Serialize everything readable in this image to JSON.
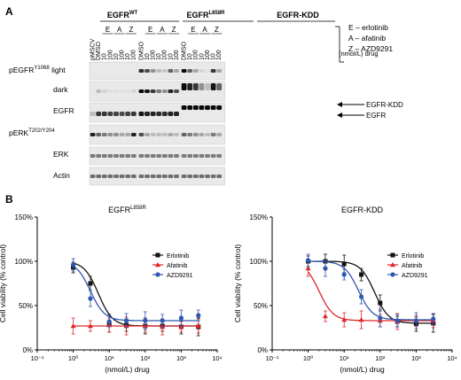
{
  "panel_a": {
    "label": "A",
    "groups": [
      {
        "name": "EGFR",
        "sup": "WT"
      },
      {
        "name": "EGFR",
        "sup": "L858R"
      },
      {
        "name": "EGFR-KDD",
        "sup": ""
      }
    ],
    "pmscv": "pMSCV",
    "dmso": "DMSO",
    "drug_letters": [
      "E",
      "A",
      "Z"
    ],
    "doses": [
      "10",
      "100"
    ],
    "drug_unit": "(nmol/L) drug",
    "legend": [
      "E – erlotinib",
      "A – afatinib",
      "Z – AZD9291"
    ],
    "rows": [
      {
        "name": "pEGFR",
        "sup": "Y1068",
        "suffix": " light"
      },
      {
        "name": "dark",
        "sup": "",
        "suffix": ""
      },
      {
        "name": "EGFR",
        "sup": "",
        "suffix": ""
      },
      {
        "name": "pERK",
        "sup": "T202/Y204",
        "suffix": ""
      },
      {
        "name": "ERK",
        "sup": "",
        "suffix": ""
      },
      {
        "name": "Actin",
        "sup": "",
        "suffix": ""
      }
    ],
    "band_arrows": [
      "EGFR-KDD",
      "EGFR"
    ]
  },
  "panel_b": {
    "label": "B",
    "ylabel": "Cell viability (% control)",
    "xlabel": "(nmol/L) drug",
    "colors": {
      "Erlotinib": "#111111",
      "Afatinib": "#e0262b",
      "AZD9291": "#2f58b0"
    }
  },
  "chart_data": [
    {
      "type": "line",
      "title": "EGFR",
      "title_sup": "L858R",
      "xlabel": "(nmol/L) drug",
      "ylabel": "Cell viability (% control)",
      "xscale": "log",
      "xlim": [
        0.1,
        10000
      ],
      "ylim": [
        0,
        150
      ],
      "xticks": [
        "10⁻¹",
        "10⁰",
        "10¹",
        "10²",
        "10³",
        "10⁴"
      ],
      "yticks": [
        "0%",
        "50%",
        "100%",
        "150%"
      ],
      "legend_position": "right",
      "x": [
        1,
        3,
        10,
        30,
        100,
        300,
        1000,
        3000
      ],
      "series": [
        {
          "name": "Erlotinib",
          "values": [
            93,
            75,
            30,
            28,
            27,
            27,
            26,
            26
          ],
          "curve": [
            100,
            27,
            5
          ]
        },
        {
          "name": "Afatinib",
          "values": [
            27,
            27,
            28,
            27,
            27,
            26,
            26,
            27
          ],
          "curve": [
            27,
            27,
            1
          ]
        },
        {
          "name": "AZD9291",
          "values": [
            96,
            58,
            32,
            33,
            33,
            33,
            36,
            39
          ],
          "curve": [
            100,
            33,
            3
          ]
        }
      ]
    },
    {
      "type": "line",
      "title": "EGFR-KDD",
      "title_sup": "",
      "xlabel": "(nmol/L) drug",
      "ylabel": "Cell viability (% control)",
      "xscale": "log",
      "xlim": [
        0.1,
        10000
      ],
      "ylim": [
        0,
        150
      ],
      "xticks": [
        "10⁻¹",
        "10⁰",
        "10¹",
        "10²",
        "10³",
        "10⁴"
      ],
      "yticks": [
        "0%",
        "50%",
        "100%",
        "150%"
      ],
      "legend_position": "right",
      "x": [
        1,
        3,
        10,
        30,
        100,
        300,
        1000,
        3000
      ],
      "series": [
        {
          "name": "Erlotinib",
          "values": [
            100,
            100,
            97,
            85,
            53,
            32,
            29,
            30
          ],
          "curve": [
            100,
            30,
            70
          ]
        },
        {
          "name": "Afatinib",
          "values": [
            92,
            38,
            34,
            34,
            33,
            32,
            33,
            33
          ],
          "curve": [
            100,
            33,
            2
          ]
        },
        {
          "name": "AZD9291",
          "values": [
            101,
            92,
            85,
            60,
            36,
            33,
            33,
            35
          ],
          "curve": [
            100,
            34,
            25
          ]
        }
      ]
    }
  ]
}
